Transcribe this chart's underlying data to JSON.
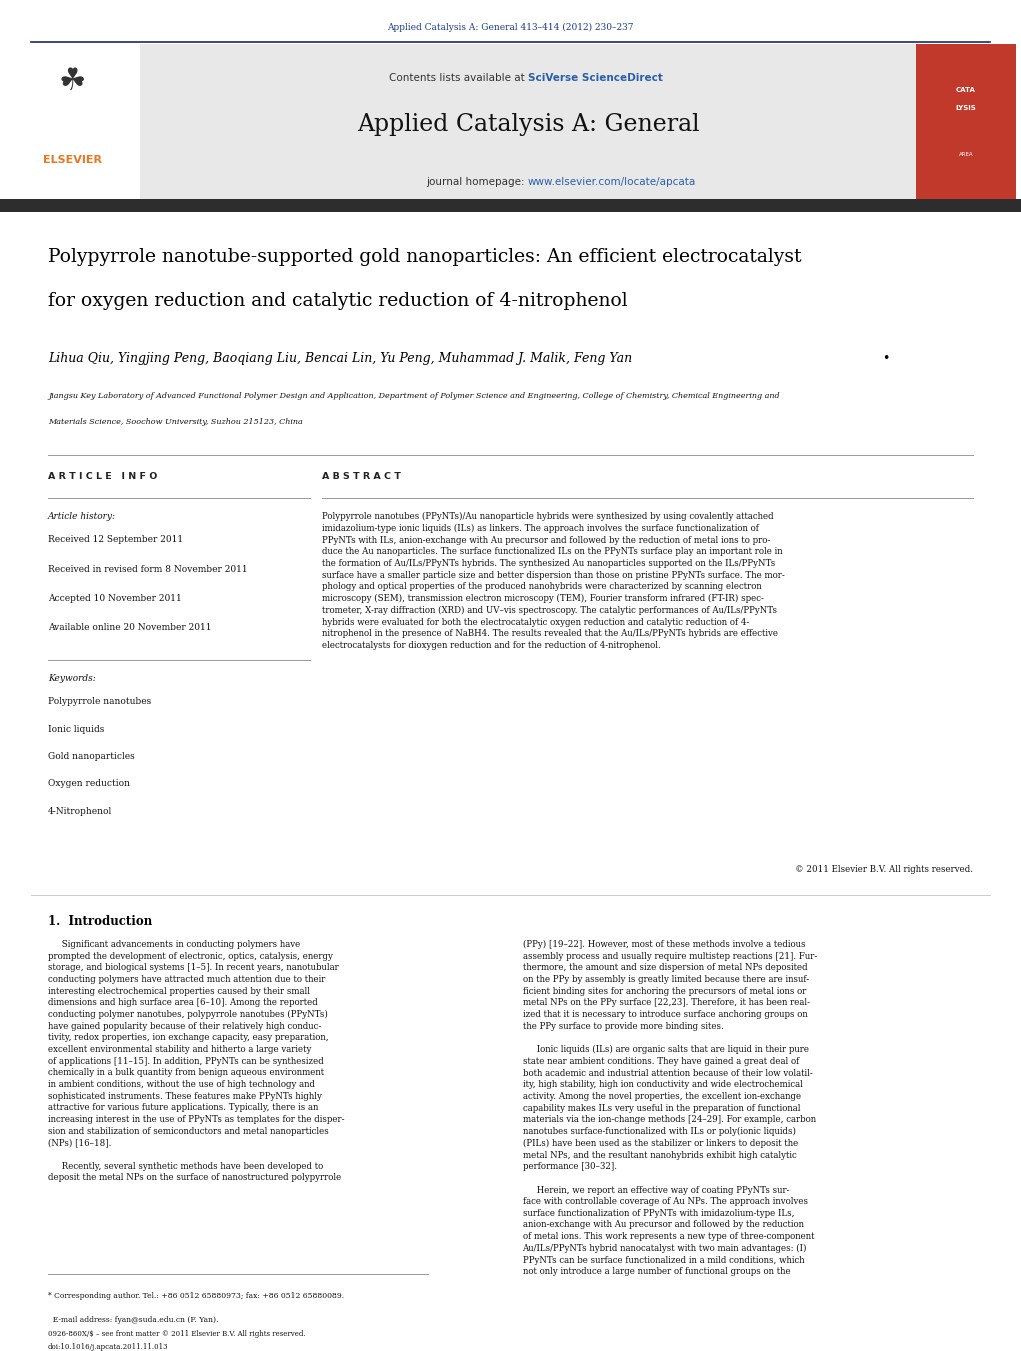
{
  "page_width": 10.21,
  "page_height": 13.51,
  "bg_color": "#ffffff",
  "top_citation": "Applied Catalysis A: General 413–414 (2012) 230–237",
  "top_citation_color": "#1a3a8c",
  "journal_name": "Applied Catalysis A: General",
  "sciverse_color": "#2a5faa",
  "homepage_link_color": "#2a5faa",
  "header_bg": "#e8e8e8",
  "red_cover_color": "#c0392b",
  "elsevier_orange": "#e87722",
  "separator_dark": "#1a2b5f",
  "paper_title_line1": "Polypyrrole nanotube-supported gold nanoparticles: An efficient electrocatalyst",
  "paper_title_line2": "for oxygen reduction and catalytic reduction of 4-nitrophenol",
  "authors_text": "Lihua Qiu, Yingjing Peng, Baoqiang Liu, Bencai Lin, Yu Peng, Muhammad J. Malik, Feng Yan",
  "affiliation_line1": "Jiangsu Key Laboratory of Advanced Functional Polymer Design and Application, Department of Polymer Science and Engineering, College of Chemistry, Chemical Engineering and",
  "affiliation_line2": "Materials Science, Soochow University, Suzhou 215123, China",
  "article_info_header": "A R T I C L E   I N F O",
  "abstract_header": "A B S T R A C T",
  "article_history_label": "Article history:",
  "received": "Received 12 September 2011",
  "received_revised": "Received in revised form 8 November 2011",
  "accepted": "Accepted 10 November 2011",
  "available_online": "Available online 20 November 2011",
  "keywords_label": "Keywords:",
  "keywords": [
    "Polypyrrole nanotubes",
    "Ionic liquids",
    "Gold nanoparticles",
    "Oxygen reduction",
    "4-Nitrophenol"
  ],
  "abstract_text": "Polypyrrole nanotubes (PPyNTs)/Au nanoparticle hybrids were synthesized by using covalently attached\nimidazolium-type ionic liquids (ILs) as linkers. The approach involves the surface functionalization of\nPPyNTs with ILs, anion-exchange with Au precursor and followed by the reduction of metal ions to pro-\nduce the Au nanoparticles. The surface functionalized ILs on the PPyNTs surface play an important role in\nthe formation of Au/ILs/PPyNTs hybrids. The synthesized Au nanoparticles supported on the ILs/PPyNTs\nsurface have a smaller particle size and better dispersion than those on pristine PPyNTs surface. The mor-\nphology and optical properties of the produced nanohybrids were characterized by scanning electron\nmicroscopy (SEM), transmission electron microscopy (TEM), Fourier transform infrared (FT-IR) spec-\ntrometer, X-ray diffraction (XRD) and UV–vis spectroscopy. The catalytic performances of Au/ILs/PPyNTs\nhybrids were evaluated for both the electrocatalytic oxygen reduction and catalytic reduction of 4-\nnitrophenol in the presence of NaBH4. The results revealed that the Au/ILs/PPyNTs hybrids are effective\nelectrocatalysts for dioxygen reduction and for the reduction of 4-nitrophenol.",
  "copyright": "© 2011 Elsevier B.V. All rights reserved.",
  "section1_title": "1.  Introduction",
  "left_intro": "     Significant advancements in conducting polymers have\nprompted the development of electronic, optics, catalysis, energy\nstorage, and biological systems [1–5]. In recent years, nanotubular\nconducting polymers have attracted much attention due to their\ninteresting electrochemical properties caused by their small\ndimensions and high surface area [6–10]. Among the reported\nconducting polymer nanotubes, polypyrrole nanotubes (PPyNTs)\nhave gained popularity because of their relatively high conduc-\ntivity, redox properties, ion exchange capacity, easy preparation,\nexcellent environmental stability and hitherto a large variety\nof applications [11–15]. In addition, PPyNTs can be synthesized\nchemically in a bulk quantity from benign aqueous environment\nin ambient conditions, without the use of high technology and\nsophisticated instruments. These features make PPyNTs highly\nattractive for various future applications. Typically, there is an\nincreasing interest in the use of PPyNTs as templates for the disper-\nsion and stabilization of semiconductors and metal nanoparticles\n(NPs) [16–18].\n\n     Recently, several synthetic methods have been developed to\ndeposit the metal NPs on the surface of nanostructured polypyrrole",
  "right_intro": "(PPy) [19–22]. However, most of these methods involve a tedious\nassembly process and usually require multistep reactions [21]. Fur-\nthermore, the amount and size dispersion of metal NPs deposited\non the PPy by assembly is greatly limited because there are insuf-\nficient binding sites for anchoring the precursors of metal ions or\nmetal NPs on the PPy surface [22,23]. Therefore, it has been real-\nized that it is necessary to introduce surface anchoring groups on\nthe PPy surface to provide more binding sites.\n\n     Ionic liquids (ILs) are organic salts that are liquid in their pure\nstate near ambient conditions. They have gained a great deal of\nboth academic and industrial attention because of their low volatil-\nity, high stability, high ion conductivity and wide electrochemical\nactivity. Among the novel properties, the excellent ion-exchange\ncapability makes ILs very useful in the preparation of functional\nmaterials via the ion-change methods [24–29]. For example, carbon\nnanotubes surface-functionalized with ILs or poly(ionic liquids)\n(PILs) have been used as the stabilizer or linkers to deposit the\nmetal NPs, and the resultant nanohybrids exhibit high catalytic\nperformance [30–32].\n\n     Herein, we report an effective way of coating PPyNTs sur-\nface with controllable coverage of Au NPs. The approach involves\nsurface functionalization of PPyNTs with imidazolium-type ILs,\nanion-exchange with Au precursor and followed by the reduction\nof metal ions. This work represents a new type of three-component\nAu/ILs/PPyNTs hybrid nanocatalyst with two main advantages: (I)\nPPyNTs can be surface functionalized in a mild conditions, which\nnot only introduce a large number of functional groups on the",
  "footnote1": "* Corresponding author. Tel.: +86 0512 65880973; fax: +86 0512 65880089.",
  "footnote2": "  E-mail address: fyan@suda.edu.cn (F. Yan).",
  "issn_text": "0926-860X/$ – see front matter © 2011 Elsevier B.V. All rights reserved.",
  "doi_text": "doi:10.1016/j.apcata.2011.11.013",
  "text_black": "#000000",
  "text_dark": "#1a1a1a"
}
